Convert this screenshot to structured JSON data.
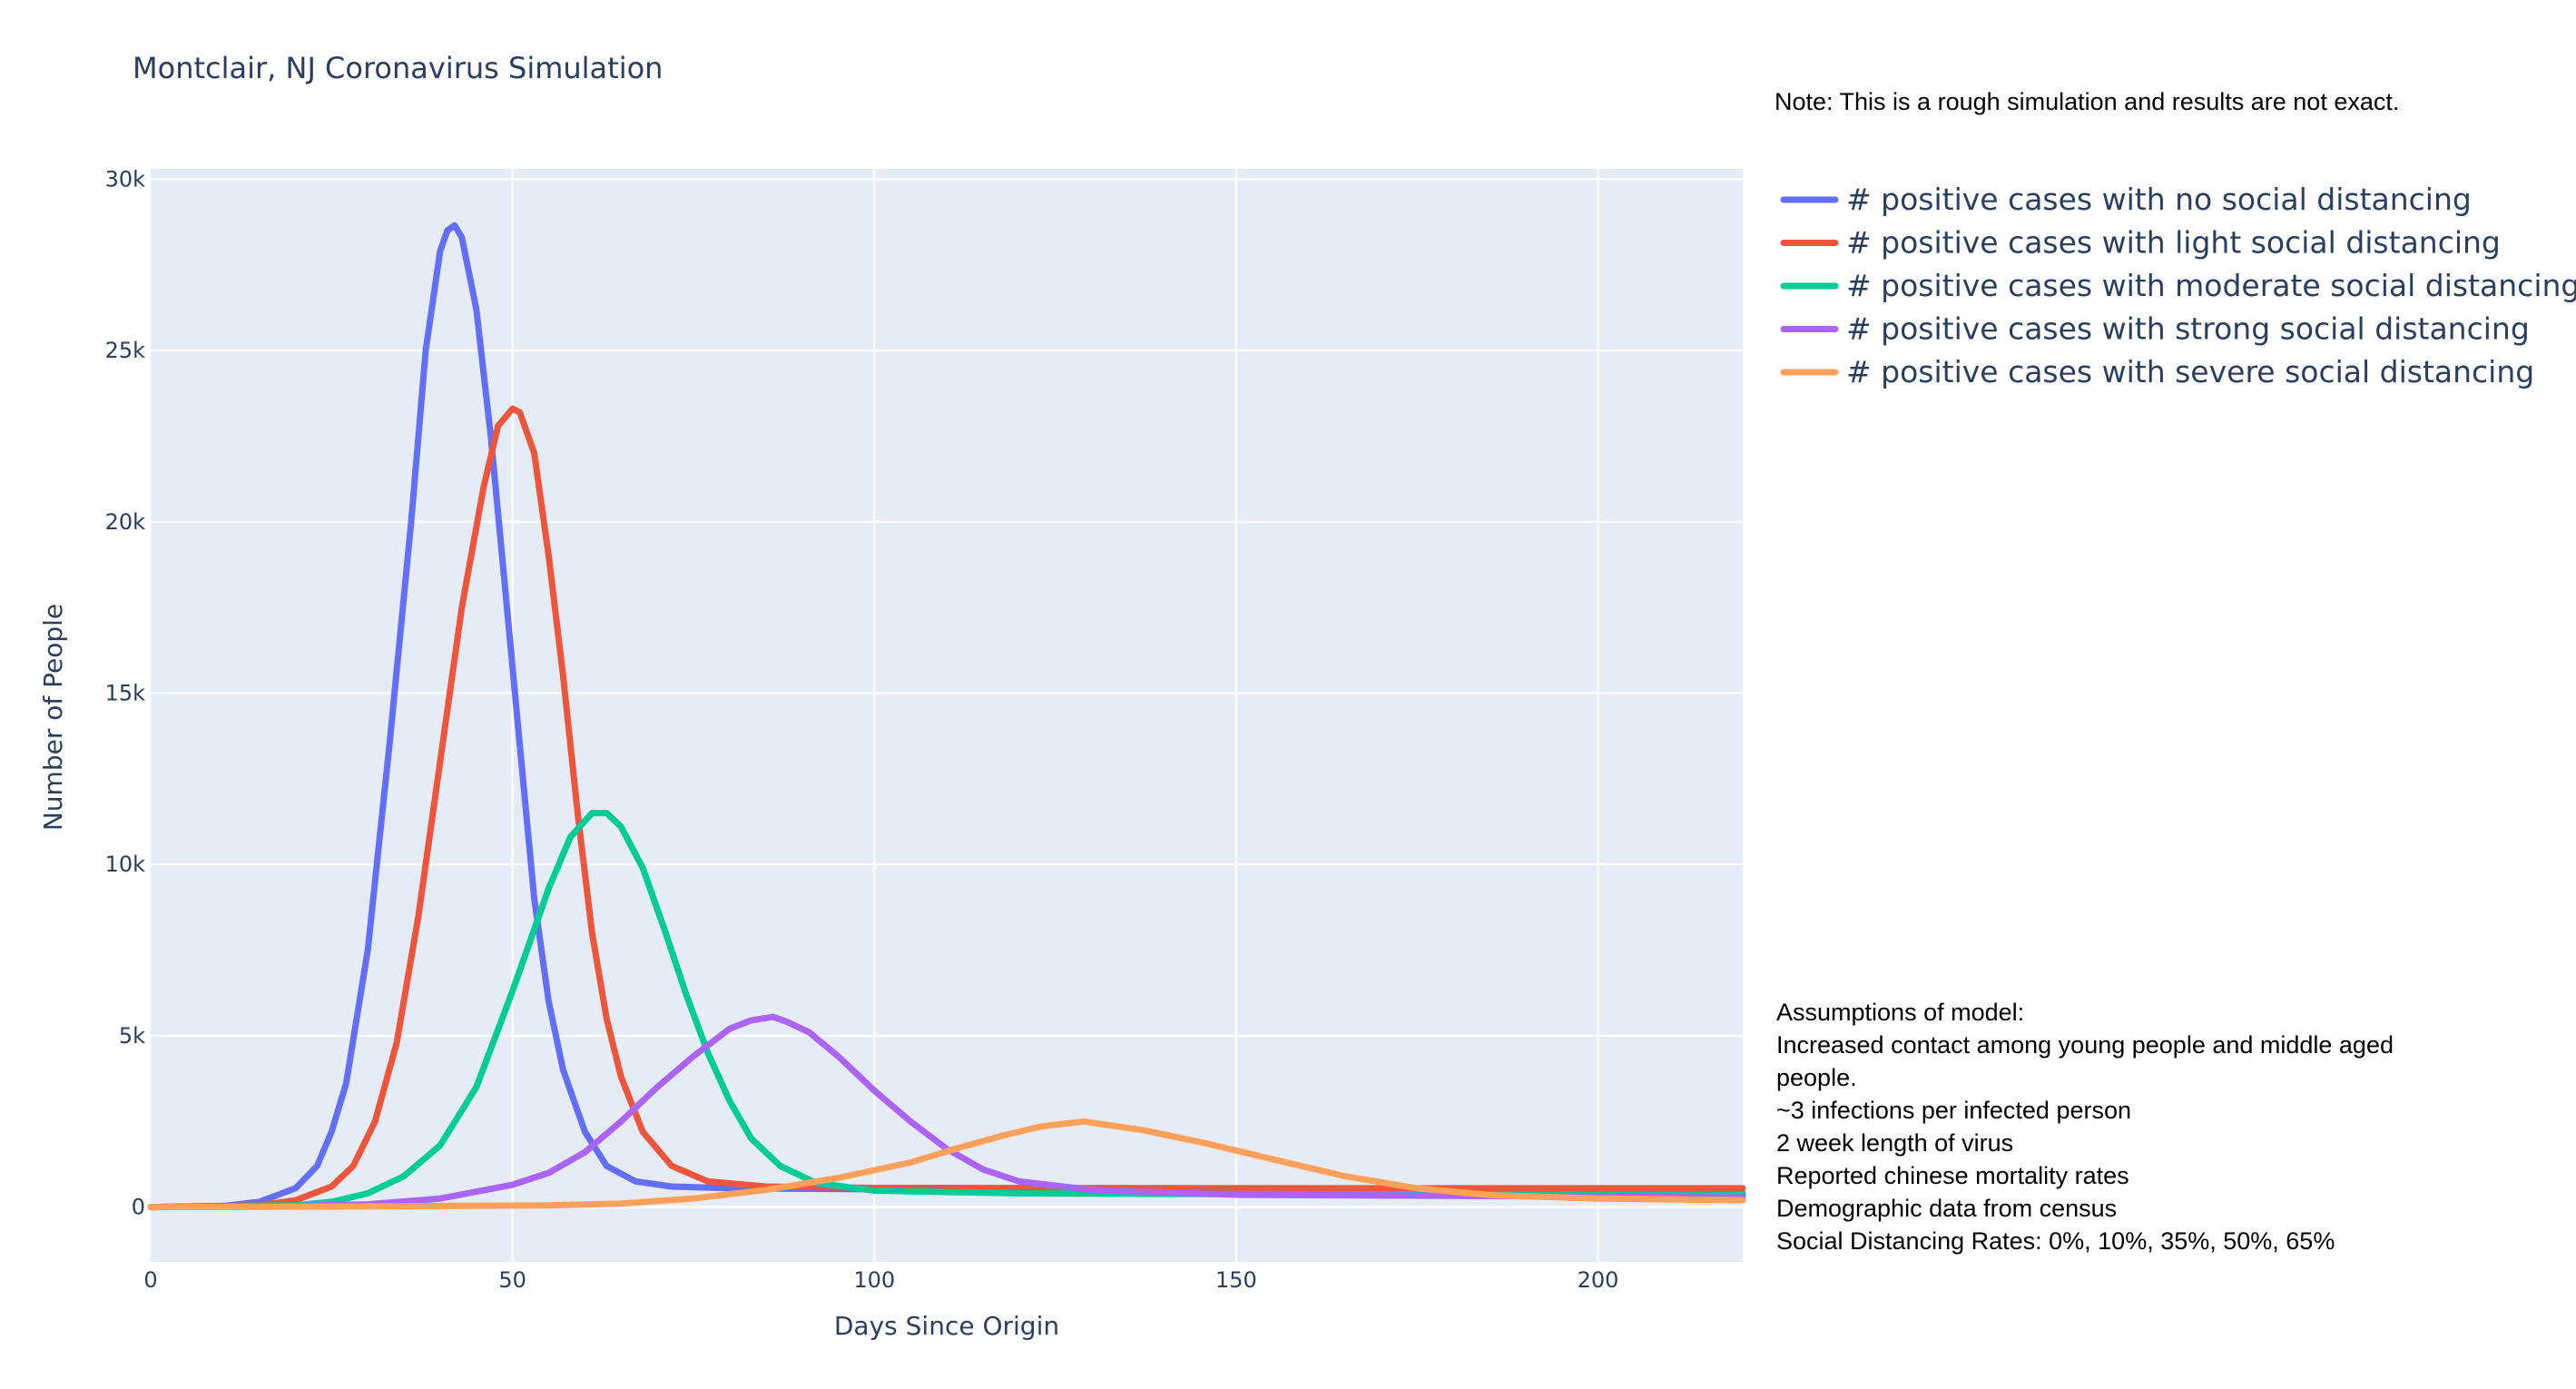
{
  "chart_data": {
    "type": "line",
    "title": "Montclair, NJ Coronavirus Simulation",
    "xlabel": "Days Since Origin",
    "ylabel": "Number of People",
    "xlim": [
      0,
      220
    ],
    "ylim": [
      -1600,
      30300
    ],
    "xticks": [
      0,
      50,
      100,
      150,
      200
    ],
    "xtick_labels": [
      "0",
      "50",
      "100",
      "150",
      "200"
    ],
    "yticks": [
      0,
      5000,
      10000,
      15000,
      20000,
      25000,
      30000
    ],
    "ytick_labels": [
      "0",
      "5k",
      "10k",
      "15k",
      "20k",
      "25k",
      "30k"
    ],
    "grid": true,
    "legend_position": "right",
    "series": [
      {
        "name": "# positive cases with no social distancing",
        "color": "#636efa",
        "points": [
          [
            0,
            0
          ],
          [
            10,
            30
          ],
          [
            15,
            150
          ],
          [
            20,
            550
          ],
          [
            23,
            1200
          ],
          [
            25,
            2200
          ],
          [
            27,
            3600
          ],
          [
            30,
            7500
          ],
          [
            33,
            13500
          ],
          [
            36,
            20000
          ],
          [
            38,
            25000
          ],
          [
            40,
            27900
          ],
          [
            41,
            28500
          ],
          [
            42,
            28650
          ],
          [
            43,
            28300
          ],
          [
            45,
            26200
          ],
          [
            47,
            22500
          ],
          [
            49,
            18000
          ],
          [
            51,
            13500
          ],
          [
            53,
            9000
          ],
          [
            55,
            6000
          ],
          [
            57,
            4000
          ],
          [
            60,
            2200
          ],
          [
            63,
            1200
          ],
          [
            67,
            750
          ],
          [
            72,
            600
          ],
          [
            80,
            550
          ],
          [
            100,
            520
          ],
          [
            150,
            460
          ],
          [
            220,
            400
          ]
        ]
      },
      {
        "name": "# positive cases with light social distancing",
        "color": "#ef553b",
        "points": [
          [
            0,
            0
          ],
          [
            15,
            50
          ],
          [
            20,
            200
          ],
          [
            25,
            600
          ],
          [
            28,
            1200
          ],
          [
            31,
            2500
          ],
          [
            34,
            4800
          ],
          [
            37,
            8500
          ],
          [
            40,
            13000
          ],
          [
            43,
            17500
          ],
          [
            46,
            21000
          ],
          [
            48,
            22800
          ],
          [
            50,
            23300
          ],
          [
            51,
            23200
          ],
          [
            53,
            22000
          ],
          [
            55,
            19000
          ],
          [
            57,
            15500
          ],
          [
            59,
            11500
          ],
          [
            61,
            8000
          ],
          [
            63,
            5500
          ],
          [
            65,
            3800
          ],
          [
            68,
            2200
          ],
          [
            72,
            1200
          ],
          [
            77,
            750
          ],
          [
            85,
            600
          ],
          [
            100,
            560
          ],
          [
            150,
            550
          ],
          [
            220,
            550
          ]
        ]
      },
      {
        "name": "# positive cases with moderate social distancing",
        "color": "#00cc96",
        "points": [
          [
            0,
            0
          ],
          [
            20,
            50
          ],
          [
            25,
            150
          ],
          [
            30,
            400
          ],
          [
            35,
            900
          ],
          [
            40,
            1800
          ],
          [
            45,
            3500
          ],
          [
            50,
            6300
          ],
          [
            55,
            9300
          ],
          [
            58,
            10800
          ],
          [
            61,
            11500
          ],
          [
            63,
            11500
          ],
          [
            65,
            11100
          ],
          [
            68,
            9900
          ],
          [
            71,
            8100
          ],
          [
            74,
            6200
          ],
          [
            77,
            4500
          ],
          [
            80,
            3100
          ],
          [
            83,
            2000
          ],
          [
            87,
            1200
          ],
          [
            92,
            700
          ],
          [
            100,
            480
          ],
          [
            120,
            400
          ],
          [
            150,
            380
          ],
          [
            220,
            360
          ]
        ]
      },
      {
        "name": "# positive cases with strong social distancing",
        "color": "#ab63fa",
        "points": [
          [
            0,
            0
          ],
          [
            20,
            30
          ],
          [
            30,
            80
          ],
          [
            40,
            250
          ],
          [
            50,
            650
          ],
          [
            55,
            1000
          ],
          [
            60,
            1600
          ],
          [
            65,
            2500
          ],
          [
            70,
            3500
          ],
          [
            75,
            4400
          ],
          [
            80,
            5200
          ],
          [
            83,
            5450
          ],
          [
            86,
            5550
          ],
          [
            88,
            5400
          ],
          [
            91,
            5100
          ],
          [
            95,
            4400
          ],
          [
            100,
            3400
          ],
          [
            105,
            2500
          ],
          [
            110,
            1700
          ],
          [
            115,
            1100
          ],
          [
            120,
            750
          ],
          [
            130,
            500
          ],
          [
            150,
            360
          ],
          [
            220,
            280
          ]
        ]
      },
      {
        "name": "# positive cases with severe social distancing",
        "color": "#ffa15a",
        "points": [
          [
            0,
            0
          ],
          [
            30,
            20
          ],
          [
            55,
            50
          ],
          [
            65,
            100
          ],
          [
            75,
            250
          ],
          [
            85,
            500
          ],
          [
            95,
            850
          ],
          [
            105,
            1300
          ],
          [
            112,
            1750
          ],
          [
            118,
            2100
          ],
          [
            123,
            2350
          ],
          [
            127,
            2450
          ],
          [
            129,
            2500
          ],
          [
            132,
            2400
          ],
          [
            137,
            2250
          ],
          [
            145,
            1900
          ],
          [
            155,
            1400
          ],
          [
            165,
            900
          ],
          [
            175,
            550
          ],
          [
            185,
            350
          ],
          [
            200,
            250
          ],
          [
            220,
            200
          ]
        ]
      }
    ]
  },
  "notes": {
    "disclaimer": "Note: This is a rough simulation and results are not exact.",
    "assumptions": [
      "Assumptions of model:",
      "Increased contact among young people and middle aged",
      "people.",
      "~3 infections per infected person",
      "2 week length of virus",
      "Reported chinese mortality rates",
      "Demographic data from census",
      "Social Distancing Rates: 0%, 10%, 35%, 50%, 65%"
    ]
  }
}
